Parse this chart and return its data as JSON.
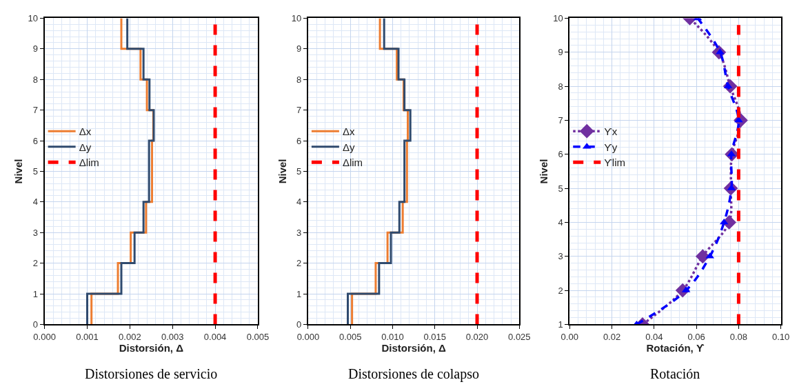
{
  "chart_data": [
    {
      "type": "step",
      "xlabel": "Distorsión, Δ",
      "ylabel": "Nivel",
      "annotations": [
        "Distorsiones de servicio"
      ],
      "grid": true,
      "legend": "left",
      "xlim": [
        0,
        0.005
      ],
      "xticks": [
        {
          "value": 0,
          "label": "0.000"
        },
        0.001,
        0.002,
        0.003,
        0.004,
        0.005
      ],
      "ylim": [
        0,
        10
      ],
      "yticks": [
        0,
        1,
        2,
        3,
        4,
        5,
        6,
        7,
        8,
        9,
        10
      ],
      "series": [
        {
          "name": "Δx",
          "color": "#ed7d31",
          "line_style": "solid",
          "x": [
            0.0011,
            0.00172,
            0.00202,
            0.00238,
            0.00252,
            0.00252,
            0.00255,
            0.0024,
            0.00225,
            0.0018,
            0.0018
          ],
          "values": [
            0,
            1,
            2,
            3,
            4,
            5,
            6,
            7,
            8,
            9,
            10
          ]
        },
        {
          "name": "Δy",
          "color": "#2f4a6e",
          "line_style": "solid",
          "x": [
            0.001,
            0.0018,
            0.00211,
            0.00232,
            0.00245,
            0.00245,
            0.00256,
            0.00246,
            0.00232,
            0.00194,
            0.00194
          ],
          "values": [
            0,
            1,
            2,
            3,
            4,
            5,
            6,
            7,
            8,
            9,
            10
          ]
        },
        {
          "name": "Δlim",
          "type": "line",
          "color": "#ff0000",
          "line_style": "dashed",
          "x": [
            0.004,
            0.004
          ],
          "values": [
            0,
            9.8
          ]
        }
      ]
    },
    {
      "type": "step",
      "xlabel": "Distorsión, Δ",
      "ylabel": "Nivel",
      "annotations": [
        "Distorsiones de colapso"
      ],
      "grid": true,
      "legend": "left",
      "xlim": [
        0,
        0.025
      ],
      "xticks": [
        {
          "value": 0,
          "label": "0.000"
        },
        0.005,
        {
          "value": 0.01,
          "label": "0.010"
        },
        0.015,
        {
          "value": 0.02,
          "label": "0.020"
        },
        0.025
      ],
      "ylim": [
        0,
        10
      ],
      "yticks": [
        0,
        1,
        2,
        3,
        4,
        5,
        6,
        7,
        8,
        9,
        10
      ],
      "series": [
        {
          "name": "Δx",
          "color": "#ed7d31",
          "line_style": "solid",
          "x": [
            0.0052,
            0.008,
            0.0094,
            0.0112,
            0.0117,
            0.0117,
            0.0118,
            0.0113,
            0.0105,
            0.0085,
            0.0085
          ],
          "values": [
            0,
            1,
            2,
            3,
            4,
            5,
            6,
            7,
            8,
            9,
            10
          ]
        },
        {
          "name": "Δy",
          "color": "#2f4a6e",
          "line_style": "solid",
          "x": [
            0.0047,
            0.0084,
            0.0098,
            0.0108,
            0.0114,
            0.0114,
            0.0121,
            0.0114,
            0.0107,
            0.009,
            0.009
          ],
          "values": [
            0,
            1,
            2,
            3,
            4,
            5,
            6,
            7,
            8,
            9,
            10
          ]
        },
        {
          "name": "Δlim",
          "type": "line",
          "color": "#ff0000",
          "line_style": "dashed",
          "x": [
            0.02,
            0.02
          ],
          "values": [
            0,
            9.8
          ]
        }
      ]
    },
    {
      "type": "line",
      "xlabel": "Rotación, ϒ",
      "ylabel": "Nivel",
      "annotations": [
        "Rotación"
      ],
      "grid": true,
      "legend": "left",
      "xlim": [
        0,
        0.1
      ],
      "xticks": [
        {
          "value": 0,
          "label": "0.00"
        },
        0.02,
        0.04,
        0.06,
        0.08,
        {
          "value": 0.1,
          "label": "0.10"
        }
      ],
      "ylim": [
        1,
        10
      ],
      "yticks": [
        1,
        2,
        3,
        4,
        5,
        6,
        7,
        8,
        9,
        10
      ],
      "series": [
        {
          "name": "ϒx",
          "color": "#7030a0",
          "line_style": "dotted",
          "marker": "diamond",
          "x": [
            0.0345,
            0.0535,
            0.063,
            0.0755,
            0.0763,
            0.0768,
            0.081,
            0.076,
            0.0707,
            0.0569
          ],
          "values": [
            1,
            2,
            3,
            4,
            5,
            6,
            7,
            8,
            9,
            10
          ]
        },
        {
          "name": "ϒy",
          "color": "#0000ff",
          "line_style": "dashed",
          "marker": "triangle",
          "x": [
            0.0317,
            0.0551,
            0.0664,
            0.0731,
            0.0766,
            0.0766,
            0.08,
            0.075,
            0.0712,
            0.0606
          ],
          "values": [
            1,
            2,
            3,
            4,
            5,
            6,
            7,
            8,
            9,
            10
          ]
        },
        {
          "name": "ϒlim",
          "color": "#ff0000",
          "line_style": "dashed",
          "marker": "none",
          "x": [
            0.08,
            0.08
          ],
          "values": [
            1,
            9.8
          ]
        }
      ]
    }
  ]
}
